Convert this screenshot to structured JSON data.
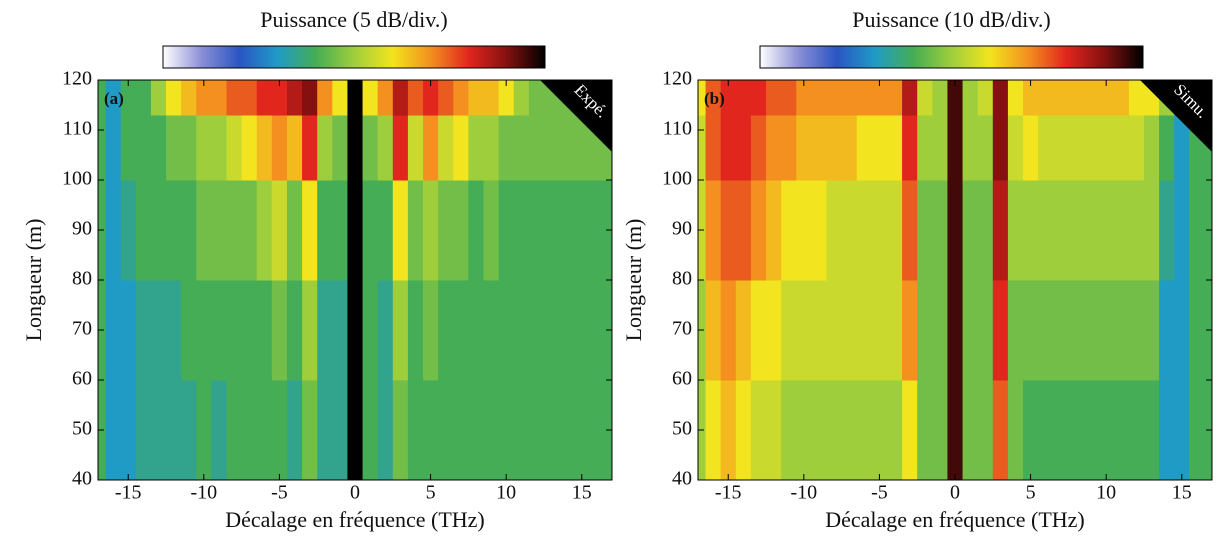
{
  "chart_data": [
    {
      "type": "heatmap",
      "title": "Puissance (5 dB/div.)",
      "xlabel": "Décalage en fréquence (THz)",
      "ylabel": "Longueur (m)",
      "panel_label": "(a)",
      "annotation": "Expé.",
      "xlim": [
        -17,
        17
      ],
      "ylim": [
        40,
        120
      ],
      "zlim": [
        0,
        10
      ],
      "xticks": [
        -15,
        -10,
        -5,
        0,
        5,
        10,
        15
      ],
      "yticks": [
        40,
        50,
        60,
        70,
        80,
        90,
        100,
        110,
        120
      ],
      "colormap": [
        "#ffffff",
        "#8c8fd6",
        "#2a55c4",
        "#1f9bc6",
        "#45ad55",
        "#9fce3c",
        "#f2e41e",
        "#f3901f",
        "#e1261e",
        "#851010",
        "#000000"
      ],
      "x": [
        -17,
        -16,
        -15,
        -14,
        -13,
        -12,
        -11,
        -10,
        -9,
        -8,
        -7,
        -6,
        -5,
        -4,
        -3,
        -2,
        -1,
        0,
        1,
        2,
        3,
        4,
        5,
        6,
        7,
        8,
        9,
        10,
        11,
        12,
        13,
        14,
        15,
        16,
        17
      ],
      "ybins": [
        40,
        60,
        80,
        100,
        113,
        120
      ],
      "z": [
        [
          4,
          3,
          3,
          3.5,
          3.5,
          3.5,
          3.5,
          4,
          3.5,
          4,
          4,
          4,
          4,
          3.5,
          4.5,
          3.5,
          3.5,
          10,
          4,
          3.5,
          4.5,
          4,
          4,
          4,
          4,
          4,
          4,
          4,
          4,
          4,
          4,
          4,
          4,
          4,
          4
        ],
        [
          4,
          3,
          3,
          3.5,
          3.5,
          3.5,
          4,
          4,
          4,
          4,
          4,
          4,
          4.5,
          4,
          5,
          3.5,
          3.5,
          10,
          4,
          3.5,
          5,
          4,
          4.5,
          4,
          4,
          4,
          4,
          4,
          4,
          4,
          4,
          4,
          4,
          4,
          4
        ],
        [
          4,
          3,
          3.5,
          4,
          4,
          4,
          4,
          4.5,
          4.5,
          4.5,
          4.5,
          5,
          5.5,
          4.5,
          6,
          4,
          4,
          10,
          4,
          4,
          6,
          4.5,
          5,
          4.5,
          4.5,
          4,
          4.5,
          4,
          4,
          4,
          4,
          4,
          4,
          4,
          4
        ],
        [
          4,
          3,
          4,
          4,
          4,
          4.5,
          4.5,
          5,
          5,
          5.5,
          6,
          6.5,
          7,
          6.5,
          8,
          5,
          4.5,
          10,
          4.5,
          5,
          8,
          5.5,
          7,
          5.5,
          6,
          5,
          5,
          4.5,
          4.5,
          4.5,
          4.5,
          4.5,
          4.5,
          4.5,
          4.5
        ],
        [
          4,
          3,
          4,
          4,
          5,
          6,
          6.5,
          7,
          7,
          7.5,
          7.5,
          8,
          8,
          8.5,
          9,
          7,
          6,
          10,
          6,
          7,
          8.5,
          7.5,
          8,
          7.5,
          7,
          6.5,
          6.5,
          6,
          5,
          4.5,
          4.5,
          4.5,
          4.5,
          4.5,
          4.5
        ]
      ]
    },
    {
      "type": "heatmap",
      "title": "Puissance (10 dB/div.)",
      "xlabel": "Décalage en fréquence (THz)",
      "ylabel": "Longueur (m)",
      "panel_label": "(b)",
      "annotation": "Simu.",
      "xlim": [
        -17,
        17
      ],
      "ylim": [
        40,
        120
      ],
      "zlim": [
        0,
        10
      ],
      "xticks": [
        -15,
        -10,
        -5,
        0,
        5,
        10,
        15
      ],
      "yticks": [
        40,
        50,
        60,
        70,
        80,
        90,
        100,
        110,
        120
      ],
      "colormap": [
        "#ffffff",
        "#8c8fd6",
        "#2a55c4",
        "#1f9bc6",
        "#45ad55",
        "#9fce3c",
        "#f2e41e",
        "#f3901f",
        "#e1261e",
        "#851010",
        "#000000"
      ],
      "x": [
        -17,
        -16,
        -15,
        -14,
        -13,
        -12,
        -11,
        -10,
        -9,
        -8,
        -7,
        -6,
        -5,
        -4,
        -3,
        -2,
        -1,
        0,
        1,
        2,
        3,
        4,
        5,
        6,
        7,
        8,
        9,
        10,
        11,
        12,
        13,
        14,
        15,
        16,
        17
      ],
      "ybins": [
        40,
        60,
        80,
        100,
        113,
        120
      ],
      "z": [
        [
          5,
          6,
          6.5,
          6,
          5.5,
          5.5,
          5,
          5,
          5,
          5,
          5,
          5,
          5,
          5,
          6,
          4.5,
          4.5,
          9.5,
          4.5,
          4.5,
          7.5,
          4.5,
          4,
          4,
          4,
          4,
          4,
          4,
          4,
          4,
          4,
          3,
          3,
          4,
          4
        ],
        [
          5,
          6.5,
          7,
          6.5,
          6,
          6,
          5.5,
          5.5,
          5.5,
          5.5,
          5.5,
          5.5,
          5.5,
          5.5,
          7,
          4.5,
          4.5,
          9.5,
          4.5,
          4.5,
          8,
          4.5,
          4.5,
          4.5,
          4.5,
          4.5,
          4.5,
          4.5,
          4.5,
          4.5,
          4.5,
          3,
          3,
          4,
          4
        ],
        [
          5.5,
          7,
          7.5,
          7.5,
          7,
          6.5,
          6,
          6,
          6,
          5.5,
          5.5,
          5.5,
          5.5,
          5.5,
          7.5,
          4.5,
          4.5,
          9.5,
          4.5,
          4.5,
          8.5,
          5,
          5,
          5,
          5,
          5,
          5,
          5,
          5,
          5,
          5,
          3.5,
          3,
          4,
          4
        ],
        [
          5.5,
          7.5,
          8,
          8,
          7.5,
          7,
          7,
          6.5,
          6.5,
          6.5,
          6.5,
          6,
          6,
          6,
          8,
          5,
          5,
          9.5,
          5,
          5,
          9,
          5.5,
          6,
          5.5,
          5.5,
          5.5,
          5.5,
          5.5,
          5.5,
          5.5,
          5,
          4,
          3,
          4,
          4
        ],
        [
          6,
          7.5,
          8,
          8,
          8,
          7.5,
          7.5,
          7,
          7,
          7,
          7,
          7,
          7,
          7,
          8.5,
          5.5,
          5,
          9.5,
          5,
          5.5,
          9,
          6,
          6.5,
          6.5,
          6.5,
          6.5,
          6.5,
          6.5,
          6.5,
          6,
          6,
          5,
          3,
          4,
          4
        ]
      ]
    }
  ]
}
